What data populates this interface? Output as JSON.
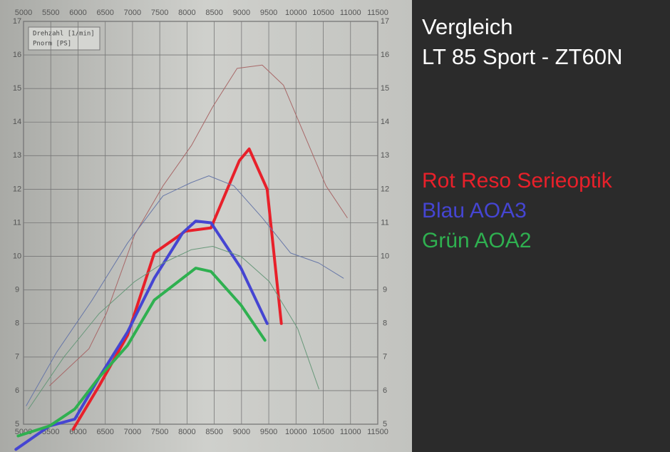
{
  "chart_data": {
    "type": "line",
    "title": "Vergleich",
    "subtitle": "LT 85 Sport - ZT60N",
    "x_label": "Drehzahl [1/min]",
    "y_label": "Pnorm [PS]",
    "xlim": [
      5000,
      11500
    ],
    "xticks": [
      5000,
      5500,
      6000,
      6500,
      7000,
      7500,
      8000,
      8500,
      9000,
      9500,
      10000,
      10500,
      11000,
      11500
    ],
    "ylim": [
      5,
      17
    ],
    "yticks": [
      5,
      6,
      7,
      8,
      9,
      10,
      11,
      12,
      13,
      14,
      15,
      16,
      17
    ],
    "grid": true,
    "series": [
      {
        "name": "Rot Reso Serieoptik",
        "color": "#e8202a",
        "line_width": 4,
        "x": [
          5910,
          6390,
          6910,
          7400,
          7970,
          8440,
          8960,
          9140,
          9470,
          9730
        ],
        "values": [
          4.85,
          6.15,
          7.65,
          10.1,
          10.75,
          10.85,
          12.85,
          13.2,
          12.0,
          8.0
        ]
      },
      {
        "name": "Blau AOA3",
        "color": "#4545d2",
        "line_width": 4,
        "x": [
          4860,
          5480,
          5940,
          6390,
          6910,
          7400,
          7920,
          8160,
          8440,
          8990,
          9470
        ],
        "values": [
          4.25,
          4.95,
          5.15,
          6.4,
          7.75,
          9.35,
          10.7,
          11.05,
          11.0,
          9.65,
          8.0
        ]
      },
      {
        "name": "Grün AOA2",
        "color": "#2fb050",
        "line_width": 4,
        "x": [
          4900,
          5480,
          5940,
          6390,
          6910,
          7400,
          8160,
          8440,
          8990,
          9430
        ],
        "values": [
          4.65,
          4.95,
          5.45,
          6.4,
          7.35,
          8.7,
          9.65,
          9.55,
          8.55,
          7.5
        ]
      },
      {
        "color": "#a86868",
        "line_width": 1,
        "x": [
          5480,
          6200,
          6520,
          7040,
          7560,
          8080,
          8470,
          8920,
          9380,
          9770,
          10160,
          10550,
          10940
        ],
        "values": [
          6.15,
          7.25,
          8.3,
          10.65,
          12.1,
          13.3,
          14.45,
          15.6,
          15.7,
          15.1,
          13.6,
          12.1,
          11.15
        ]
      },
      {
        "color": "#6878a8",
        "line_width": 1,
        "x": [
          5050,
          5610,
          6260,
          6910,
          7560,
          8080,
          8400,
          8860,
          9380,
          9900,
          10420,
          10870
        ],
        "values": [
          5.55,
          7.15,
          8.7,
          10.4,
          11.8,
          12.2,
          12.4,
          12.1,
          11.15,
          10.1,
          9.8,
          9.35
        ]
      },
      {
        "color": "#68987a",
        "line_width": 1,
        "x": [
          5090,
          5740,
          6390,
          7040,
          7560,
          8080,
          8470,
          8990,
          9510,
          10030,
          10420
        ],
        "values": [
          5.45,
          7.0,
          8.3,
          9.25,
          9.8,
          10.2,
          10.3,
          10.0,
          9.25,
          7.85,
          6.05
        ]
      }
    ]
  }
}
